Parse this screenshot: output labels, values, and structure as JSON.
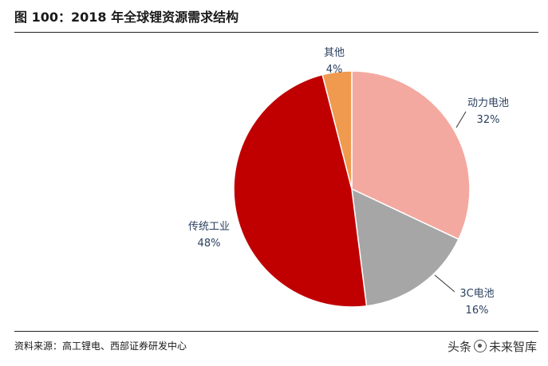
{
  "header": {
    "title": "图 100：2018 年全球锂资源需求结构"
  },
  "footer": {
    "source": "资料来源：高工锂电、西部证券研发中心",
    "watermark_left": "头条",
    "watermark_right": "未来智库"
  },
  "chart_data": {
    "type": "pie",
    "title": "图 100：2018 年全球锂资源需求结构",
    "start_angle_deg": 0,
    "direction": "clockwise",
    "slices": [
      {
        "name": "动力电池",
        "value": 32,
        "label": "32%",
        "color": "#f4a9a0"
      },
      {
        "name": "3C电池",
        "value": 16,
        "label": "16%",
        "color": "#a6a6a6"
      },
      {
        "name": "传统工业",
        "value": 48,
        "label": "48%",
        "color": "#c00000"
      },
      {
        "name": "其他",
        "value": 4,
        "label": "4%",
        "color": "#ef9a4f"
      }
    ]
  }
}
